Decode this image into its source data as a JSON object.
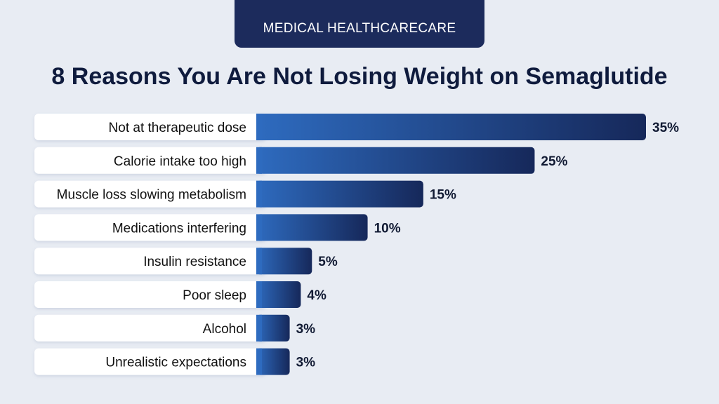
{
  "header": {
    "badge": "MEDICAL HEALTHCARECARE"
  },
  "chart_data": {
    "type": "bar",
    "orientation": "horizontal",
    "title": "8 Reasons You Are Not Losing Weight on Semaglutide",
    "categories": [
      "Not at therapeutic dose",
      "Calorie intake too high",
      "Muscle loss slowing metabolism",
      "Medications interfering",
      "Insulin resistance",
      "Poor sleep",
      "Alcohol",
      "Unrealistic expectations"
    ],
    "values": [
      35,
      25,
      15,
      10,
      5,
      4,
      3,
      3
    ],
    "value_labels": [
      "35%",
      "25%",
      "15%",
      "10%",
      "5%",
      "4%",
      "3%",
      "3%"
    ],
    "xlim": [
      0,
      35
    ],
    "grid": false,
    "colors": {
      "bar_start": "#2e6bbf",
      "bar_end": "#16285a",
      "label_bg": "#ffffff",
      "badge": "#1c2b5c"
    }
  }
}
